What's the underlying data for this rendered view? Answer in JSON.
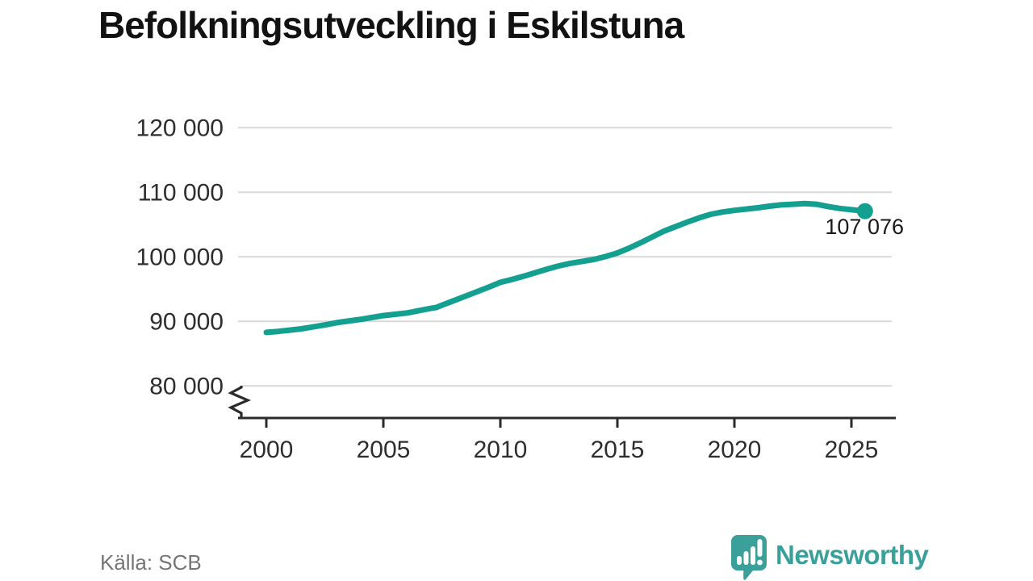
{
  "title": "Befolkningsutveckling i Eskilstuna",
  "source": "Källa: SCB",
  "brand": {
    "name": "Newsworthy",
    "logo_icon": "newsworthy-speech-bubble-bar-chart-icon",
    "color": "#3aa099"
  },
  "colors": {
    "line": "#14a090",
    "grid": "#d9d9d9",
    "axis": "#2b2b2b",
    "tick_text": "#2e2e2e",
    "label_text": "#1a1a1a",
    "muted_text": "#757575"
  },
  "chart_data": {
    "type": "line",
    "title": "Befolkningsutveckling i Eskilstuna",
    "xlabel": "",
    "ylabel": "",
    "grid": "horizontal",
    "legend": "none",
    "axis_break_bottom_left": true,
    "xlim": [
      2000,
      2026.8
    ],
    "ylim_shown": [
      80000,
      120000
    ],
    "x_ticks": [
      2000,
      2005,
      2010,
      2015,
      2020,
      2025
    ],
    "y_ticks": [
      120000,
      110000,
      100000,
      90000,
      80000
    ],
    "y_tick_labels": [
      "120 000",
      "110 000",
      "100 000",
      "90 000",
      "80 000"
    ],
    "x": [
      2000,
      2000.5,
      2001,
      2001.5,
      2002,
      2002.5,
      2003,
      2003.5,
      2004,
      2004.5,
      2005,
      2005.5,
      2006,
      2006.5,
      2007,
      2007.25,
      2007.5,
      2008,
      2008.5,
      2009,
      2009.5,
      2010,
      2010.5,
      2011,
      2011.5,
      2012,
      2012.5,
      2013,
      2013.5,
      2014,
      2014.5,
      2015,
      2015.5,
      2016,
      2016.5,
      2017,
      2017.5,
      2018,
      2018.5,
      2019,
      2019.5,
      2020,
      2020.5,
      2021,
      2021.5,
      2022,
      2022.5,
      2023,
      2023.5,
      2024,
      2024.5,
      2025,
      2025.58
    ],
    "series": [
      {
        "name": "Befolkning i Eskilstuna",
        "values": [
          88300,
          88450,
          88650,
          88850,
          89150,
          89450,
          89800,
          90050,
          90300,
          90600,
          90900,
          91100,
          91300,
          91650,
          92000,
          92150,
          92500,
          93200,
          93900,
          94600,
          95300,
          96050,
          96500,
          97000,
          97550,
          98100,
          98600,
          99000,
          99300,
          99600,
          100050,
          100600,
          101350,
          102200,
          103100,
          104000,
          104700,
          105400,
          106050,
          106600,
          106950,
          107200,
          107400,
          107600,
          107850,
          108050,
          108150,
          108250,
          108150,
          107800,
          107500,
          107300,
          107076
        ]
      }
    ],
    "last_point": {
      "x": 2025.58,
      "y": 107076,
      "label": "107 076"
    },
    "source": "SCB"
  }
}
